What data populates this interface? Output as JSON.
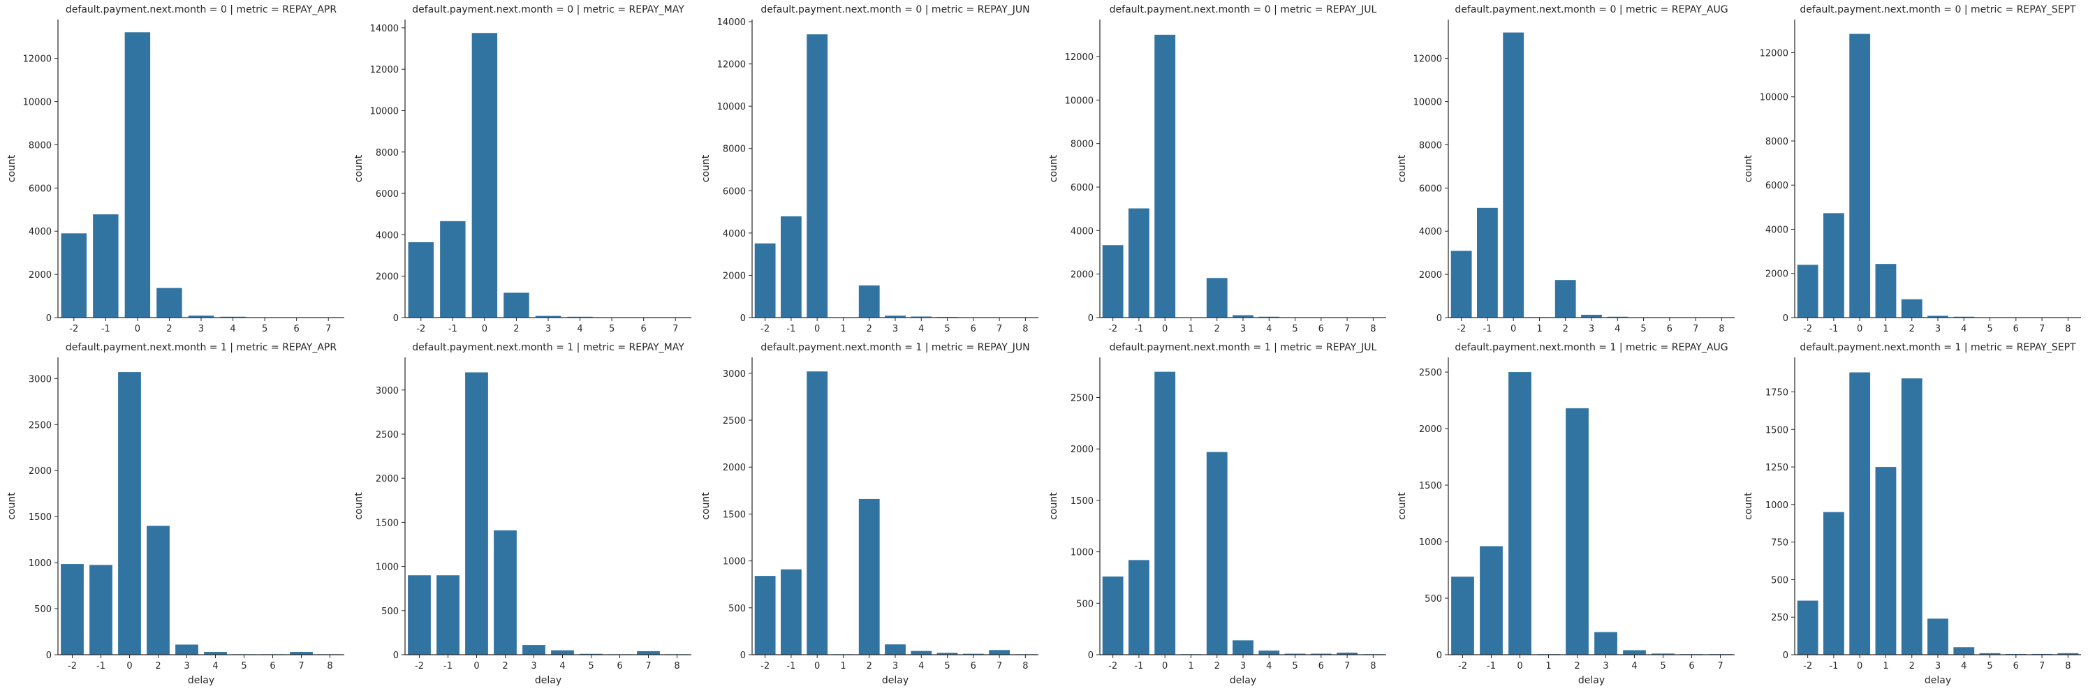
{
  "style": {
    "bar_color": "#3274a1",
    "axis_color": "#262626"
  },
  "chart_data": [
    {
      "type": "bar",
      "title": "default.payment.next.month = 0 | metric = REPAY_APR",
      "xlabel": "",
      "ylabel": "count",
      "ylim": [
        0,
        13800
      ],
      "yticks": [
        0,
        2000,
        4000,
        6000,
        8000,
        10000,
        12000
      ],
      "categories": [
        "-2",
        "-1",
        "0",
        "2",
        "3",
        "4",
        "5",
        "6",
        "7"
      ],
      "values": [
        3900,
        4780,
        13210,
        1370,
        90,
        40,
        10,
        5,
        5
      ]
    },
    {
      "type": "bar",
      "title": "default.payment.next.month = 0 | metric = REPAY_MAY",
      "xlabel": "",
      "ylabel": "count",
      "ylim": [
        0,
        14400
      ],
      "yticks": [
        0,
        2000,
        4000,
        6000,
        8000,
        10000,
        12000,
        14000
      ],
      "categories": [
        "-2",
        "-1",
        "0",
        "2",
        "3",
        "4",
        "5",
        "6",
        "7"
      ],
      "values": [
        3640,
        4660,
        13750,
        1200,
        80,
        40,
        10,
        5,
        5
      ]
    },
    {
      "type": "bar",
      "title": "default.payment.next.month = 0 | metric = REPAY_JUN",
      "xlabel": "",
      "ylabel": "count",
      "ylim": [
        0,
        14100
      ],
      "yticks": [
        0,
        2000,
        4000,
        6000,
        8000,
        10000,
        12000,
        14000
      ],
      "categories": [
        "-2",
        "-1",
        "0",
        "1",
        "2",
        "3",
        "4",
        "5",
        "6",
        "7",
        "8"
      ],
      "values": [
        3510,
        4790,
        13400,
        5,
        1520,
        90,
        50,
        30,
        5,
        10,
        5
      ]
    },
    {
      "type": "bar",
      "title": "default.payment.next.month = 0 | metric = REPAY_JUL",
      "xlabel": "",
      "ylabel": "count",
      "ylim": [
        0,
        13700
      ],
      "yticks": [
        0,
        2000,
        4000,
        6000,
        8000,
        10000,
        12000
      ],
      "categories": [
        "-2",
        "-1",
        "0",
        "1",
        "2",
        "3",
        "4",
        "5",
        "6",
        "7",
        "8"
      ],
      "values": [
        3330,
        5020,
        13000,
        5,
        1820,
        110,
        40,
        10,
        5,
        5,
        5
      ]
    },
    {
      "type": "bar",
      "title": "default.payment.next.month = 0 | metric = REPAY_AUG",
      "xlabel": "",
      "ylabel": "count",
      "ylim": [
        0,
        13800
      ],
      "yticks": [
        0,
        2000,
        4000,
        6000,
        8000,
        10000,
        12000
      ],
      "categories": [
        "-2",
        "-1",
        "0",
        "1",
        "2",
        "3",
        "4",
        "5",
        "6",
        "7",
        "8"
      ],
      "values": [
        3090,
        5080,
        13200,
        20,
        1740,
        130,
        40,
        10,
        5,
        5,
        5
      ]
    },
    {
      "type": "bar",
      "title": "default.payment.next.month = 0 | metric = REPAY_SEPT",
      "xlabel": "",
      "ylabel": "count",
      "ylim": [
        0,
        13500
      ],
      "yticks": [
        0,
        2000,
        4000,
        6000,
        8000,
        10000,
        12000
      ],
      "categories": [
        "-2",
        "-1",
        "0",
        "1",
        "2",
        "3",
        "4",
        "5",
        "6",
        "7",
        "8"
      ],
      "values": [
        2390,
        4730,
        12850,
        2430,
        830,
        80,
        40,
        10,
        5,
        5,
        5
      ]
    },
    {
      "type": "bar",
      "title": "default.payment.next.month = 1 | metric = REPAY_APR",
      "xlabel": "delay",
      "ylabel": "count",
      "ylim": [
        0,
        3230
      ],
      "yticks": [
        0,
        500,
        1000,
        1500,
        2000,
        2500,
        3000
      ],
      "categories": [
        "-2",
        "-1",
        "0",
        "2",
        "3",
        "4",
        "5",
        "6",
        "7",
        "8"
      ],
      "values": [
        985,
        975,
        3070,
        1400,
        110,
        30,
        5,
        5,
        30,
        5
      ]
    },
    {
      "type": "bar",
      "title": "default.payment.next.month = 1 | metric = REPAY_MAY",
      "xlabel": "delay",
      "ylabel": "count",
      "ylim": [
        0,
        3370
      ],
      "yticks": [
        0,
        500,
        1000,
        1500,
        2000,
        2500,
        3000
      ],
      "categories": [
        "-2",
        "-1",
        "0",
        "2",
        "3",
        "4",
        "5",
        "6",
        "7",
        "8"
      ],
      "values": [
        900,
        900,
        3200,
        1410,
        110,
        50,
        10,
        5,
        40,
        5
      ]
    },
    {
      "type": "bar",
      "title": "default.payment.next.month = 1 | metric = REPAY_JUN",
      "xlabel": "delay",
      "ylabel": "count",
      "ylim": [
        0,
        3170
      ],
      "yticks": [
        0,
        500,
        1000,
        1500,
        2000,
        2500,
        3000
      ],
      "categories": [
        "-2",
        "-1",
        "0",
        "1",
        "2",
        "3",
        "4",
        "5",
        "6",
        "7",
        "8"
      ],
      "values": [
        840,
        910,
        3020,
        5,
        1660,
        110,
        40,
        20,
        10,
        50,
        5
      ]
    },
    {
      "type": "bar",
      "title": "default.payment.next.month = 1 | metric = REPAY_JUL",
      "xlabel": "delay",
      "ylabel": "count",
      "ylim": [
        0,
        2890
      ],
      "yticks": [
        0,
        500,
        1000,
        1500,
        2000,
        2500
      ],
      "categories": [
        "-2",
        "-1",
        "0",
        "1",
        "2",
        "3",
        "4",
        "5",
        "6",
        "7",
        "8"
      ],
      "values": [
        760,
        920,
        2750,
        5,
        1970,
        140,
        40,
        10,
        10,
        20,
        5
      ]
    },
    {
      "type": "bar",
      "title": "default.payment.next.month = 1 | metric = REPAY_AUG",
      "xlabel": "delay",
      "ylabel": "count",
      "ylim": [
        0,
        2630
      ],
      "yticks": [
        0,
        500,
        1000,
        1500,
        2000,
        2500
      ],
      "categories": [
        "-2",
        "-1",
        "0",
        "1",
        "2",
        "3",
        "4",
        "5",
        "6",
        "7"
      ],
      "values": [
        690,
        960,
        2500,
        5,
        2180,
        200,
        40,
        10,
        5,
        5
      ]
    },
    {
      "type": "bar",
      "title": "default.payment.next.month = 1 | metric = REPAY_SEPT",
      "xlabel": "delay",
      "ylabel": "count",
      "ylim": [
        0,
        1980
      ],
      "yticks": [
        0,
        250,
        500,
        750,
        1000,
        1250,
        1500,
        1750
      ],
      "categories": [
        "-2",
        "-1",
        "0",
        "1",
        "2",
        "3",
        "4",
        "5",
        "6",
        "7",
        "8"
      ],
      "values": [
        360,
        950,
        1880,
        1250,
        1840,
        240,
        50,
        10,
        5,
        5,
        10
      ]
    }
  ]
}
